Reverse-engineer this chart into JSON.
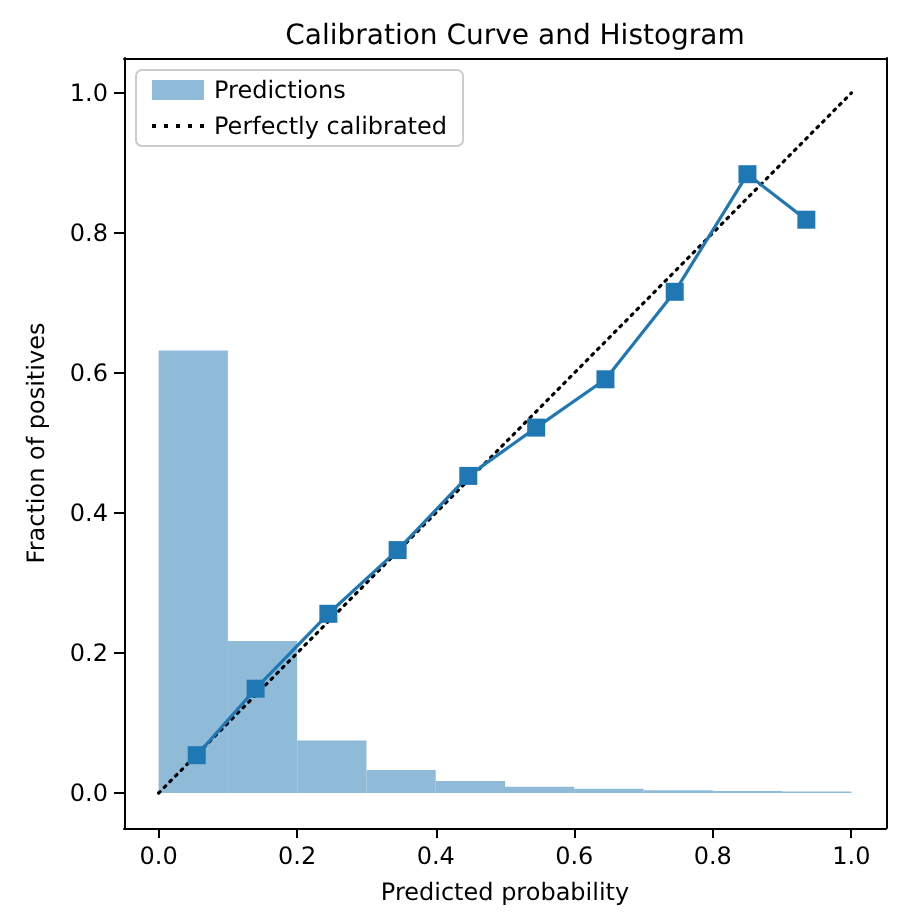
{
  "chart_data": {
    "type": "line",
    "title": "Calibration Curve and Histogram",
    "xlabel": "Predicted probability",
    "ylabel": "Fraction of positives",
    "xlim": [
      -0.05,
      1.05
    ],
    "ylim": [
      -0.05,
      1.05
    ],
    "xticks": [
      {
        "value": 0,
        "label": "0.0"
      },
      {
        "value": 0.2,
        "label": "0.2"
      },
      {
        "value": 0.4,
        "label": "0.4"
      },
      {
        "value": 0.6,
        "label": "0.6"
      },
      {
        "value": 0.8,
        "label": "0.8"
      },
      {
        "value": 1,
        "label": "1.0"
      }
    ],
    "yticks": [
      {
        "value": 0,
        "label": "0.0"
      },
      {
        "value": 0.2,
        "label": "0.2"
      },
      {
        "value": 0.4,
        "label": "0.4"
      },
      {
        "value": 0.6,
        "label": "0.6"
      },
      {
        "value": 0.8,
        "label": "0.8"
      },
      {
        "value": 1,
        "label": "1.0"
      }
    ],
    "grid": false,
    "legend": "top left",
    "series": [
      {
        "type": "histogram",
        "name": "Predictions",
        "color": "#8fbbd9",
        "bins": [
          0,
          0.1,
          0.2,
          0.3,
          0.4,
          0.5,
          0.6,
          0.7,
          0.8,
          0.9,
          1
        ],
        "values": [
          0.632,
          0.217,
          0.075,
          0.033,
          0.017,
          0.009,
          0.006,
          0.004,
          0.003,
          0.002
        ]
      },
      {
        "name": "Perfectly calibrated",
        "color": "#000000",
        "line_style": "dotted",
        "marker": "none",
        "x": [
          0,
          1
        ],
        "values": [
          0,
          1
        ]
      },
      {
        "color": "#1f77b4",
        "line_style": "solid",
        "marker": "square",
        "x": [
          0.055,
          0.14,
          0.245,
          0.345,
          0.447,
          0.545,
          0.645,
          0.745,
          0.85,
          0.935
        ],
        "values": [
          0.054,
          0.149,
          0.256,
          0.347,
          0.453,
          0.522,
          0.591,
          0.716,
          0.884,
          0.819
        ]
      }
    ]
  }
}
